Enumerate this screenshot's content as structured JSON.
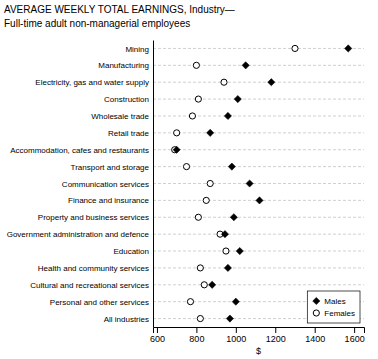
{
  "chart_data": {
    "type": "dot",
    "orientation": "horizontal",
    "title": "AVERAGE WEEKLY TOTAL EARNINGS, Industry—",
    "subtitle": "Full-time adult non-managerial employees",
    "xlabel": "$",
    "categories": [
      "Mining",
      "Manufacturing",
      "Electricity, gas and water supply",
      "Construction",
      "Wholesale trade",
      "Retail trade",
      "Accommodation, cafes and restaurants",
      "Transport and storage",
      "Communication services",
      "Finance and insurance",
      "Property and business services",
      "Government administration and defence",
      "Education",
      "Health and community services",
      "Cultural and recreational services",
      "Personal and other services",
      "All industries"
    ],
    "series": [
      {
        "name": "Males",
        "color": "#000000",
        "marker": "diamond",
        "values": [
          1570,
          1050,
          1180,
          1010,
          960,
          870,
          700,
          980,
          1070,
          1120,
          990,
          945,
          1020,
          960,
          880,
          1000,
          970
        ]
      },
      {
        "name": "Females",
        "color": "#000000",
        "marker": "circle",
        "values": [
          1300,
          800,
          940,
          810,
          780,
          700,
          690,
          750,
          870,
          850,
          810,
          920,
          950,
          820,
          840,
          770,
          820
        ]
      }
    ],
    "xlim": [
      580,
      1650
    ],
    "xticks": [
      600,
      800,
      1000,
      1200,
      1400,
      1600
    ],
    "grid": true,
    "legend": "lower right"
  }
}
